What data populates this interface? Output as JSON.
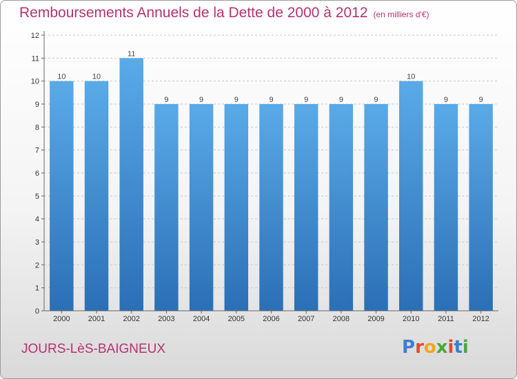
{
  "title": "Remboursements Annuels de la Dette de 2000 à 2012",
  "unit": "(en milliers d'€)",
  "commune": "JOURS-LèS-BAIGNEUX",
  "logo": {
    "letters": [
      "P",
      "r",
      "o",
      "x",
      "i",
      "t",
      "i"
    ],
    "colors": [
      "#3b7fd1",
      "#e34a2e",
      "#f2a71b",
      "#4aa83a",
      "#e34a2e",
      "#3b7fd1",
      "#4aa83a"
    ]
  },
  "colors": {
    "bar_top": "#5aaae8",
    "bar_bottom": "#2b6fb5",
    "accent": "#b5326f"
  },
  "chart_data": {
    "type": "bar",
    "categories": [
      "2000",
      "2001",
      "2002",
      "2003",
      "2004",
      "2005",
      "2006",
      "2007",
      "2008",
      "2009",
      "2010",
      "2011",
      "2012"
    ],
    "values": [
      10,
      10,
      11,
      9,
      9,
      9,
      9,
      9,
      9,
      9,
      10,
      9,
      9
    ],
    "value_labels": [
      "10",
      "10",
      "11",
      "9",
      "9",
      "9",
      "9",
      "9",
      "9",
      "9",
      "10",
      "9",
      "9"
    ],
    "yticks": [
      "0",
      "1",
      "2",
      "3",
      "4",
      "5",
      "6",
      "7",
      "8",
      "9",
      "10",
      "11",
      "12"
    ],
    "ylim": [
      0,
      12
    ],
    "grid": "horizontal-dashed",
    "legend": "none"
  }
}
